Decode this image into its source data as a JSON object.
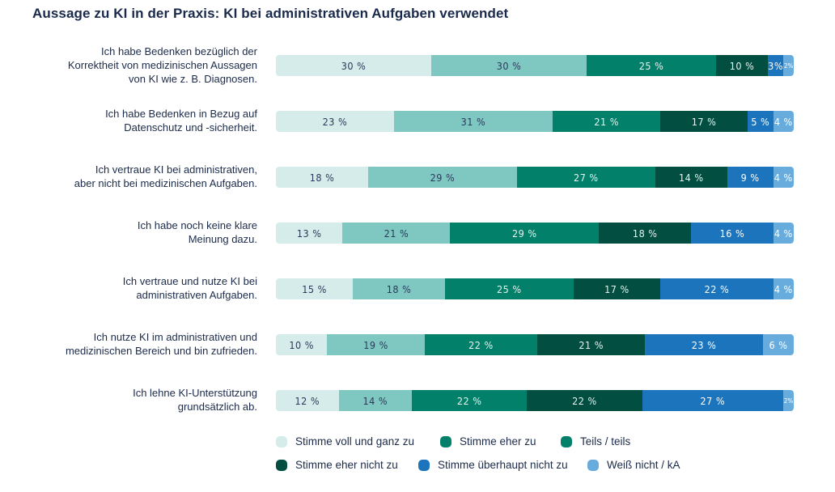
{
  "chart_data": {
    "type": "bar",
    "orientation": "horizontal",
    "stacked": true,
    "normalized": true,
    "title": "Aussage zu KI in der Praxis: KI bei administrativen Aufgaben verwendet",
    "xlabel": "",
    "ylabel": "",
    "value_suffix": "%",
    "categories": [
      [
        "Ich habe Bedenken bezüglich der",
        "Korrektheit von medizinischen Aussagen",
        "von KI wie z. B. Diagnosen."
      ],
      [
        "Ich habe Bedenken in Bezug auf",
        "Datenschutz und -sicherheit."
      ],
      [
        "Ich vertraue KI bei administrativen,",
        "aber nicht bei medizinischen Aufgaben."
      ],
      [
        "Ich habe noch keine klare",
        "Meinung dazu."
      ],
      [
        "Ich vertraue und nutze KI bei",
        "administrativen Aufgaben."
      ],
      [
        "Ich nutze KI im administrativen und",
        "medizinischen Bereich und bin zufrieden."
      ],
      [
        "Ich lehne KI-Unterstützung",
        "grundsätzlich ab."
      ]
    ],
    "series": [
      {
        "name": "Stimme voll und ganz zu",
        "color": "#d5ecea",
        "label_color": "#2b3a5c",
        "legend_color": "#d5ecea",
        "values": [
          30,
          23,
          18,
          13,
          15,
          10,
          12
        ]
      },
      {
        "name": "Stimme eher zu",
        "color": "#7fc8c1",
        "label_color": "#2b3a5c",
        "legend_color": "#03806a",
        "values": [
          30,
          31,
          29,
          21,
          18,
          19,
          14
        ]
      },
      {
        "name": "Teils / teils",
        "color": "#03806a",
        "label_color": "#e6f3f0",
        "legend_color": "#03806a",
        "values": [
          25,
          21,
          27,
          29,
          25,
          22,
          22
        ]
      },
      {
        "name": "Stimme eher nicht zu",
        "color": "#024f42",
        "label_color": "#e6f3f0",
        "legend_color": "#024f42",
        "values": [
          10,
          17,
          14,
          18,
          17,
          21,
          22
        ]
      },
      {
        "name": "Stimme überhaupt nicht zu",
        "color": "#1c74bd",
        "label_color": "#ffffff",
        "legend_color": "#1c74bd",
        "values": [
          3,
          5,
          9,
          16,
          22,
          23,
          27
        ]
      },
      {
        "name": "Weiß nicht / kA",
        "color": "#68acde",
        "label_color": "#ffffff",
        "legend_color": "#68acde",
        "values": [
          2,
          4,
          4,
          4,
          4,
          6,
          2
        ]
      }
    ],
    "data_labels": [
      [
        "30 %",
        "30 %",
        "25 %",
        "10 %",
        "3%",
        "2%"
      ],
      [
        "23 %",
        "31 %",
        "21 %",
        "17 %",
        "5 %",
        "4 %"
      ],
      [
        "18 %",
        "29 %",
        "27 %",
        "14 %",
        "9 %",
        "4 %"
      ],
      [
        "13 %",
        "21 %",
        "29 %",
        "18 %",
        "16 %",
        "4 %"
      ],
      [
        "15 %",
        "18 %",
        "25 %",
        "17 %",
        "22 %",
        "4 %"
      ],
      [
        "10 %",
        "19 %",
        "22 %",
        "21 %",
        "23 %",
        "6 %"
      ],
      [
        "12 %",
        "14 %",
        "22 %",
        "22 %",
        "27 %",
        "2%"
      ]
    ],
    "legend": {
      "placement": "bottom",
      "entries": [
        "Stimme voll und ganz zu",
        "Stimme eher zu",
        "Teils / teils",
        "Stimme eher nicht zu",
        "Stimme überhaupt nicht zu",
        "Weiß nicht / kA"
      ]
    },
    "grid": false
  }
}
